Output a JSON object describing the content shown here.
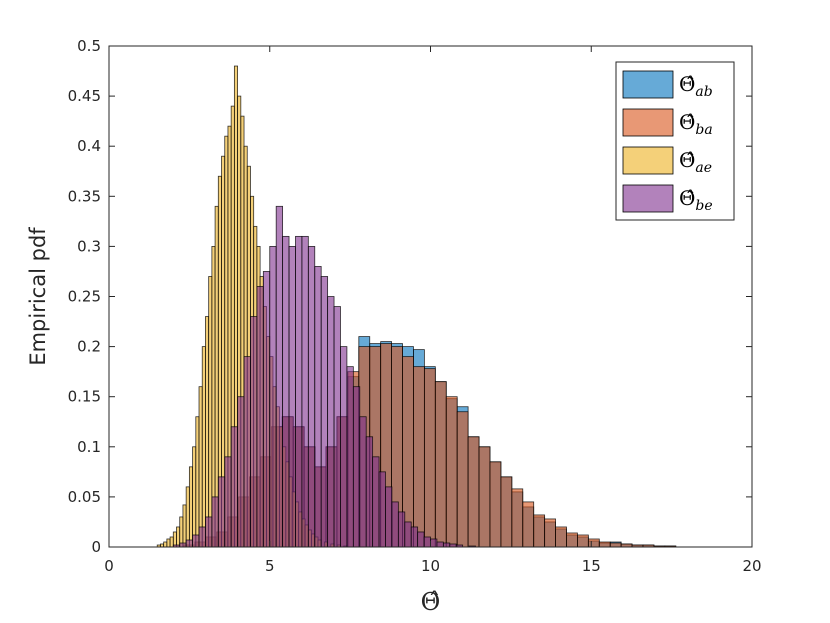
{
  "chart_data": {
    "type": "histogram",
    "title": "",
    "xlabel": "Θ̂",
    "ylabel": "Empirical pdf",
    "xlim": [
      0,
      20
    ],
    "ylim": [
      0,
      0.5
    ],
    "xticks": [
      "0",
      "5",
      "10",
      "15",
      "20"
    ],
    "yticks": [
      "0",
      "0.05",
      "0.1",
      "0.15",
      "0.2",
      "0.25",
      "0.3",
      "0.35",
      "0.4",
      "0.45",
      "0.5"
    ],
    "legend_location": "top-right",
    "grid": false,
    "series": [
      {
        "name": "Θ̂ab",
        "label_base": "Θ̂",
        "label_sub": "ab",
        "color": "#0072BD",
        "bin_width": 0.34,
        "points": [
          [
            2.5,
            0.002
          ],
          [
            2.84,
            0.005
          ],
          [
            3.18,
            0.01
          ],
          [
            3.52,
            0.015
          ],
          [
            3.86,
            0.03
          ],
          [
            4.2,
            0.05
          ],
          [
            4.54,
            0.07
          ],
          [
            4.88,
            0.09
          ],
          [
            5.22,
            0.12
          ],
          [
            5.56,
            0.13
          ],
          [
            5.9,
            0.12
          ],
          [
            6.24,
            0.1
          ],
          [
            6.58,
            0.08
          ],
          [
            6.92,
            0.1
          ],
          [
            7.26,
            0.13
          ],
          [
            7.6,
            0.17
          ],
          [
            7.94,
            0.21
          ],
          [
            8.28,
            0.203
          ],
          [
            8.62,
            0.205
          ],
          [
            8.96,
            0.203
          ],
          [
            9.3,
            0.2
          ],
          [
            9.64,
            0.197
          ],
          [
            9.98,
            0.18
          ],
          [
            10.32,
            0.165
          ],
          [
            10.66,
            0.148
          ],
          [
            11.0,
            0.14
          ],
          [
            11.34,
            0.11
          ],
          [
            11.68,
            0.1
          ],
          [
            12.02,
            0.085
          ],
          [
            12.36,
            0.07
          ],
          [
            12.7,
            0.055
          ],
          [
            13.04,
            0.04
          ],
          [
            13.38,
            0.03
          ],
          [
            13.72,
            0.025
          ],
          [
            14.06,
            0.018
          ],
          [
            14.4,
            0.012
          ],
          [
            14.74,
            0.01
          ],
          [
            15.08,
            0.006
          ],
          [
            15.42,
            0.004
          ],
          [
            15.76,
            0.005
          ],
          [
            16.1,
            0.003
          ],
          [
            16.44,
            0.002
          ],
          [
            16.78,
            0.002
          ],
          [
            17.12,
            0.001
          ],
          [
            17.46,
            0.001
          ]
        ]
      },
      {
        "name": "Θ̂ba",
        "label_base": "Θ̂",
        "label_sub": "ba",
        "color": "#D95319",
        "bin_width": 0.34,
        "points": [
          [
            2.5,
            0.002
          ],
          [
            2.84,
            0.005
          ],
          [
            3.18,
            0.01
          ],
          [
            3.52,
            0.015
          ],
          [
            3.86,
            0.03
          ],
          [
            4.2,
            0.05
          ],
          [
            4.54,
            0.07
          ],
          [
            4.88,
            0.09
          ],
          [
            5.22,
            0.12
          ],
          [
            5.56,
            0.13
          ],
          [
            5.9,
            0.12
          ],
          [
            6.24,
            0.1
          ],
          [
            6.58,
            0.08
          ],
          [
            6.92,
            0.1
          ],
          [
            7.26,
            0.13
          ],
          [
            7.6,
            0.175
          ],
          [
            7.94,
            0.2
          ],
          [
            8.28,
            0.2
          ],
          [
            8.62,
            0.203
          ],
          [
            8.96,
            0.2
          ],
          [
            9.3,
            0.19
          ],
          [
            9.64,
            0.18
          ],
          [
            9.98,
            0.178
          ],
          [
            10.32,
            0.165
          ],
          [
            10.66,
            0.15
          ],
          [
            11.0,
            0.135
          ],
          [
            11.34,
            0.11
          ],
          [
            11.68,
            0.1
          ],
          [
            12.02,
            0.085
          ],
          [
            12.36,
            0.07
          ],
          [
            12.7,
            0.058
          ],
          [
            13.04,
            0.045
          ],
          [
            13.38,
            0.032
          ],
          [
            13.72,
            0.028
          ],
          [
            14.06,
            0.02
          ],
          [
            14.4,
            0.014
          ],
          [
            14.74,
            0.012
          ],
          [
            15.08,
            0.008
          ],
          [
            15.42,
            0.005
          ],
          [
            15.76,
            0.004
          ],
          [
            16.1,
            0.003
          ],
          [
            16.44,
            0.002
          ],
          [
            16.78,
            0.002
          ],
          [
            17.12,
            0.001
          ],
          [
            17.46,
            0.001
          ]
        ]
      },
      {
        "name": "Θ̂ae",
        "label_base": "Θ̂",
        "label_sub": "ae",
        "color": "#EDB120",
        "bin_width": 0.1,
        "points": [
          [
            1.55,
            0.002
          ],
          [
            1.65,
            0.003
          ],
          [
            1.75,
            0.005
          ],
          [
            1.85,
            0.008
          ],
          [
            1.95,
            0.01
          ],
          [
            2.05,
            0.015
          ],
          [
            2.15,
            0.02
          ],
          [
            2.25,
            0.03
          ],
          [
            2.35,
            0.042
          ],
          [
            2.45,
            0.06
          ],
          [
            2.55,
            0.08
          ],
          [
            2.65,
            0.1
          ],
          [
            2.75,
            0.13
          ],
          [
            2.85,
            0.16
          ],
          [
            2.95,
            0.2
          ],
          [
            3.05,
            0.23
          ],
          [
            3.15,
            0.27
          ],
          [
            3.25,
            0.3
          ],
          [
            3.35,
            0.34
          ],
          [
            3.45,
            0.37
          ],
          [
            3.55,
            0.39
          ],
          [
            3.65,
            0.41
          ],
          [
            3.75,
            0.42
          ],
          [
            3.85,
            0.44
          ],
          [
            3.95,
            0.48
          ],
          [
            4.05,
            0.45
          ],
          [
            4.15,
            0.43
          ],
          [
            4.25,
            0.4
          ],
          [
            4.35,
            0.38
          ],
          [
            4.45,
            0.35
          ],
          [
            4.55,
            0.32
          ],
          [
            4.65,
            0.3
          ],
          [
            4.75,
            0.27
          ],
          [
            4.85,
            0.24
          ],
          [
            4.95,
            0.21
          ],
          [
            5.05,
            0.19
          ],
          [
            5.15,
            0.16
          ],
          [
            5.25,
            0.14
          ],
          [
            5.35,
            0.12
          ],
          [
            5.45,
            0.1
          ],
          [
            5.55,
            0.085
          ],
          [
            5.65,
            0.07
          ],
          [
            5.75,
            0.055
          ],
          [
            5.85,
            0.045
          ],
          [
            5.95,
            0.035
          ],
          [
            6.05,
            0.028
          ],
          [
            6.15,
            0.022
          ],
          [
            6.25,
            0.017
          ],
          [
            6.35,
            0.013
          ],
          [
            6.45,
            0.01
          ],
          [
            6.55,
            0.007
          ],
          [
            6.75,
            0.005
          ],
          [
            6.95,
            0.003
          ],
          [
            7.15,
            0.002
          ],
          [
            7.35,
            0.001
          ]
        ]
      },
      {
        "name": "Θ̂be",
        "label_base": "Θ̂",
        "label_sub": "be",
        "color": "#7E2F8E",
        "bin_width": 0.2,
        "points": [
          [
            2.1,
            0.002
          ],
          [
            2.3,
            0.004
          ],
          [
            2.5,
            0.007
          ],
          [
            2.7,
            0.012
          ],
          [
            2.9,
            0.02
          ],
          [
            3.1,
            0.03
          ],
          [
            3.3,
            0.05
          ],
          [
            3.5,
            0.07
          ],
          [
            3.7,
            0.09
          ],
          [
            3.9,
            0.12
          ],
          [
            4.1,
            0.15
          ],
          [
            4.3,
            0.19
          ],
          [
            4.5,
            0.23
          ],
          [
            4.7,
            0.26
          ],
          [
            4.9,
            0.275
          ],
          [
            5.1,
            0.3
          ],
          [
            5.3,
            0.34
          ],
          [
            5.5,
            0.31
          ],
          [
            5.7,
            0.3
          ],
          [
            5.9,
            0.31
          ],
          [
            6.1,
            0.31
          ],
          [
            6.3,
            0.3
          ],
          [
            6.5,
            0.28
          ],
          [
            6.7,
            0.27
          ],
          [
            6.9,
            0.25
          ],
          [
            7.1,
            0.24
          ],
          [
            7.3,
            0.2
          ],
          [
            7.5,
            0.18
          ],
          [
            7.7,
            0.16
          ],
          [
            7.9,
            0.13
          ],
          [
            8.1,
            0.11
          ],
          [
            8.3,
            0.09
          ],
          [
            8.5,
            0.075
          ],
          [
            8.7,
            0.06
          ],
          [
            8.9,
            0.045
          ],
          [
            9.1,
            0.035
          ],
          [
            9.3,
            0.025
          ],
          [
            9.5,
            0.02
          ],
          [
            9.7,
            0.015
          ],
          [
            9.9,
            0.01
          ],
          [
            10.1,
            0.008
          ],
          [
            10.3,
            0.005
          ],
          [
            10.5,
            0.004
          ],
          [
            10.7,
            0.003
          ],
          [
            10.9,
            0.002
          ],
          [
            11.3,
            0.001
          ]
        ]
      }
    ]
  }
}
